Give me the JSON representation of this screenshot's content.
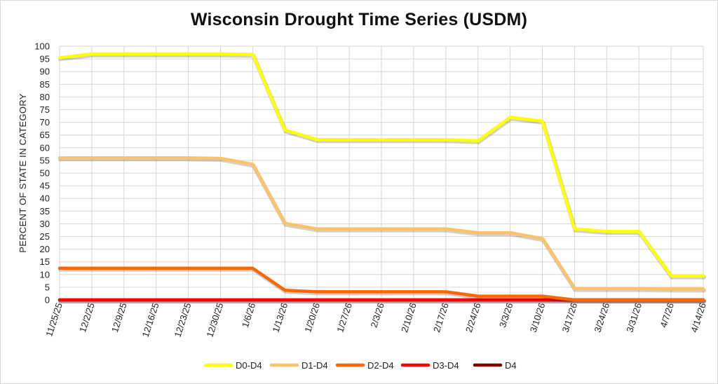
{
  "chart_data": {
    "type": "line",
    "title": "Wisconsin Drought Time Series (USDM)",
    "ylabel": "PERCENT OF STATE IN CATEGORY",
    "xlabel": "",
    "ylim": [
      0,
      100
    ],
    "ystep": 5,
    "grid": true,
    "legend_position": "bottom",
    "categories": [
      "11/25/25",
      "12/2/25",
      "12/9/25",
      "12/16/25",
      "12/23/25",
      "12/30/25",
      "1/6/26",
      "1/13/26",
      "1/20/26",
      "1/27/26",
      "2/3/26",
      "2/10/26",
      "2/17/26",
      "2/24/26",
      "3/3/26",
      "3/10/26",
      "3/17/26",
      "3/24/26",
      "3/31/26",
      "4/7/26",
      "4/14/26"
    ],
    "series": [
      {
        "name": "D0-D4",
        "color": "#ffff00",
        "values": [
          95.5,
          97,
          97,
          97,
          97,
          97,
          96.8,
          67,
          63.2,
          63.2,
          63.2,
          63.2,
          63.2,
          62.8,
          72,
          70.5,
          28,
          27,
          27,
          9.5,
          9.5
        ]
      },
      {
        "name": "D1-D4",
        "color": "#ffc266",
        "values": [
          56,
          56,
          56,
          56,
          56,
          55.8,
          53.5,
          30.2,
          28,
          28,
          28,
          28,
          28,
          26.5,
          26.5,
          24.2,
          4.5,
          4.5,
          4.5,
          4.3,
          4.3
        ]
      },
      {
        "name": "D2-D4",
        "color": "#ff6600",
        "values": [
          12.5,
          12.5,
          12.5,
          12.5,
          12.5,
          12.5,
          12.5,
          3.8,
          3.2,
          3.2,
          3.2,
          3.2,
          3.2,
          1.5,
          1.5,
          1.5,
          0,
          0,
          0,
          0,
          0
        ]
      },
      {
        "name": "D3-D4",
        "color": "#ff0000",
        "values": [
          0,
          0,
          0,
          0,
          0,
          0,
          0,
          0,
          0,
          0,
          0,
          0,
          0,
          0,
          0,
          0,
          0,
          0,
          0,
          0,
          0
        ]
      },
      {
        "name": "D4",
        "color": "#800000",
        "values": [
          0,
          0,
          0,
          0,
          0,
          0,
          0,
          0,
          0,
          0,
          0,
          0,
          0,
          0,
          0,
          0,
          0,
          0,
          0,
          0,
          0
        ]
      }
    ]
  }
}
